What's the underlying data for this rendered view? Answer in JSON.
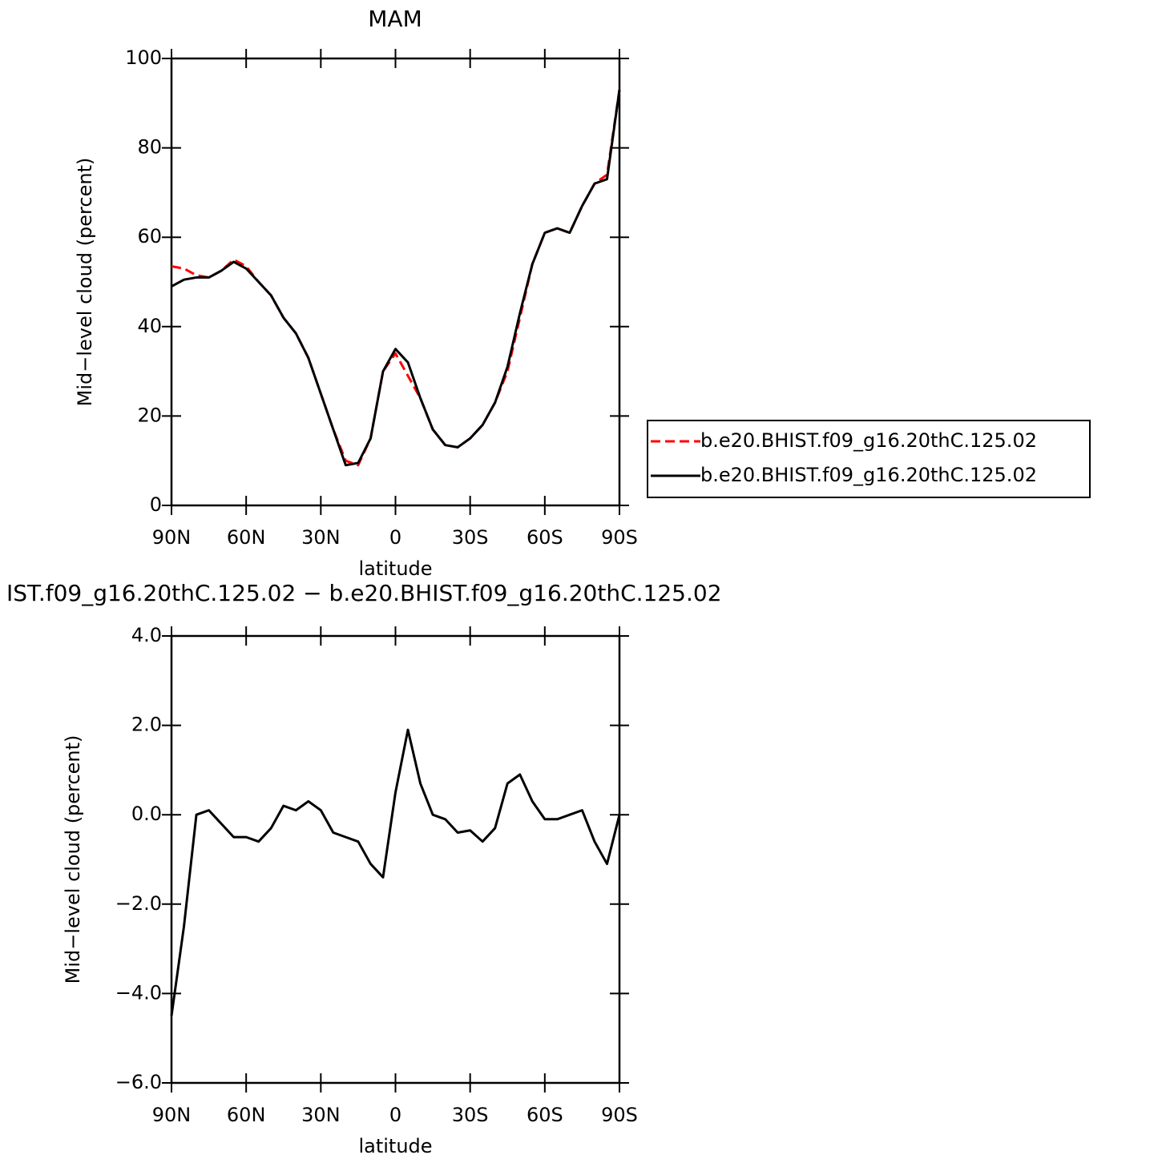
{
  "chart_data": [
    {
      "type": "line",
      "title": "MAM",
      "xlabel": "latitude",
      "ylabel": "Mid−level cloud (percent)",
      "x": [
        90,
        85,
        80,
        75,
        70,
        65,
        60,
        55,
        50,
        45,
        40,
        35,
        30,
        25,
        20,
        15,
        10,
        5,
        0,
        -5,
        -10,
        -15,
        -20,
        -25,
        -30,
        -35,
        -40,
        -45,
        -50,
        -55,
        -60,
        -65,
        -70,
        -75,
        -80,
        -85,
        -90
      ],
      "series": [
        {
          "name": "b.e20.BHIST.f09_g16.20thC.125.02",
          "color": "#ff0000",
          "style": "dashed",
          "values": [
            53.5,
            53,
            51.5,
            51,
            52.5,
            55,
            53.5,
            50,
            47,
            42,
            38.5,
            33,
            25,
            17,
            10,
            9,
            15,
            30,
            34,
            29,
            24,
            17,
            13.5,
            13,
            15,
            18,
            23,
            30,
            42,
            54,
            61,
            62,
            61,
            67,
            72,
            74,
            93
          ]
        },
        {
          "name": "b.e20.BHIST.f09_g16.20thC.125.02",
          "color": "#000000",
          "style": "solid",
          "values": [
            49,
            50.5,
            51,
            51,
            52.5,
            54.5,
            53,
            50,
            47,
            42,
            38.5,
            33,
            25,
            17,
            9,
            9.5,
            15,
            30,
            35,
            32,
            24,
            17,
            13.5,
            13,
            15,
            18,
            23,
            31,
            43,
            54,
            61,
            62,
            61,
            67,
            72,
            73,
            93
          ]
        }
      ],
      "xlim": [
        90,
        -90
      ],
      "ylim": [
        0,
        100
      ],
      "xticks": [
        {
          "value": 90,
          "label": "90N"
        },
        {
          "value": 60,
          "label": "60N"
        },
        {
          "value": 30,
          "label": "30N"
        },
        0,
        {
          "value": -30,
          "label": "30S"
        },
        {
          "value": -60,
          "label": "60S"
        },
        {
          "value": -90,
          "label": "90S"
        }
      ],
      "yticks": [
        0,
        20,
        40,
        60,
        80,
        100
      ],
      "legend": "right"
    },
    {
      "type": "line",
      "title": "IST.f09_g16.20thC.125.02 − b.e20.BHIST.f09_g16.20thC.125.02",
      "xlabel": "latitude",
      "ylabel": "Mid−level cloud (percent)",
      "x": [
        90,
        85,
        80,
        75,
        70,
        65,
        60,
        55,
        50,
        45,
        40,
        35,
        30,
        25,
        20,
        15,
        10,
        5,
        0,
        -5,
        -10,
        -15,
        -20,
        -25,
        -30,
        -35,
        -40,
        -45,
        -50,
        -55,
        -60,
        -65,
        -70,
        -75,
        -80,
        -85,
        -90
      ],
      "series": [
        {
          "color": "#000000",
          "style": "solid",
          "values": [
            -4.5,
            -2.5,
            0,
            0.1,
            -0.2,
            -0.5,
            -0.5,
            -0.6,
            -0.3,
            0.2,
            0.1,
            0.3,
            0.1,
            -0.4,
            -0.5,
            -0.6,
            -1.1,
            -1.4,
            0.5,
            1.9,
            0.7,
            0,
            -0.1,
            -0.4,
            -0.35,
            -0.6,
            -0.3,
            0.7,
            0.9,
            0.3,
            -0.1,
            -0.1,
            0,
            0.1,
            -0.6,
            -1.1,
            0
          ]
        }
      ],
      "xlim": [
        90,
        -90
      ],
      "ylim": [
        -6,
        4
      ],
      "xticks": [
        {
          "value": 90,
          "label": "90N"
        },
        {
          "value": 60,
          "label": "60N"
        },
        {
          "value": 30,
          "label": "30N"
        },
        0,
        {
          "value": -30,
          "label": "30S"
        },
        {
          "value": -60,
          "label": "60S"
        },
        {
          "value": -90,
          "label": "90S"
        }
      ],
      "yticks": [
        {
          "value": -6,
          "label": "−6.0"
        },
        {
          "value": -4,
          "label": "−4.0"
        },
        {
          "value": -2,
          "label": "−2.0"
        },
        {
          "value": 0,
          "label": "0.0"
        },
        {
          "value": 2,
          "label": "2.0"
        },
        {
          "value": 4,
          "label": "4.0"
        }
      ]
    }
  ]
}
